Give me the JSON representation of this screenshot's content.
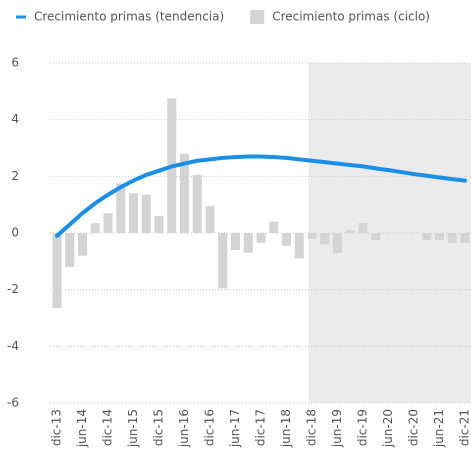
{
  "chart_data": {
    "type": "bar",
    "categories": [
      "dic-13",
      null,
      "jun-14",
      null,
      "dic-14",
      null,
      "jun-15",
      null,
      "dic-15",
      null,
      "jun-16",
      null,
      "dic-16",
      null,
      "jun-17",
      null,
      "dic-17",
      null,
      "jun-18",
      null,
      "dic-18",
      null,
      "jun-19",
      null,
      "dic-19",
      null,
      "jun-20",
      null,
      "dic-20",
      null,
      "jun-21",
      null,
      "dic-21"
    ],
    "series": [
      {
        "name": "Crecimiento primas (tendencia)",
        "type": "line",
        "color": "#1a8fe6",
        "values": [
          -0.1,
          0.3,
          0.7,
          1.05,
          1.35,
          1.62,
          1.85,
          2.05,
          2.2,
          2.35,
          2.45,
          2.55,
          2.6,
          2.65,
          2.68,
          2.7,
          2.7,
          2.68,
          2.65,
          2.6,
          2.55,
          2.5,
          2.45,
          2.4,
          2.35,
          2.28,
          2.22,
          2.15,
          2.08,
          2.02,
          1.96,
          1.9,
          1.85
        ]
      },
      {
        "name": "Crecimiento primas (ciclo)",
        "type": "bar",
        "color": "#d4d4d4",
        "values": [
          -2.65,
          -1.2,
          -0.8,
          0.35,
          0.7,
          1.75,
          1.4,
          1.35,
          0.6,
          4.75,
          2.8,
          2.05,
          0.95,
          -1.95,
          -0.6,
          -0.7,
          -0.35,
          0.4,
          -0.45,
          -0.9,
          -0.2,
          -0.4,
          -0.7,
          0.1,
          0.35,
          -0.25,
          0,
          0,
          0,
          -0.25,
          -0.25,
          -0.35,
          -0.35
        ]
      }
    ],
    "ylim": [
      -6,
      6
    ],
    "yticks": [
      -6,
      -4,
      -2,
      0,
      2,
      4,
      6
    ],
    "grid": true,
    "shade_from": "dic-18",
    "shade_color": "#ebebeb"
  }
}
